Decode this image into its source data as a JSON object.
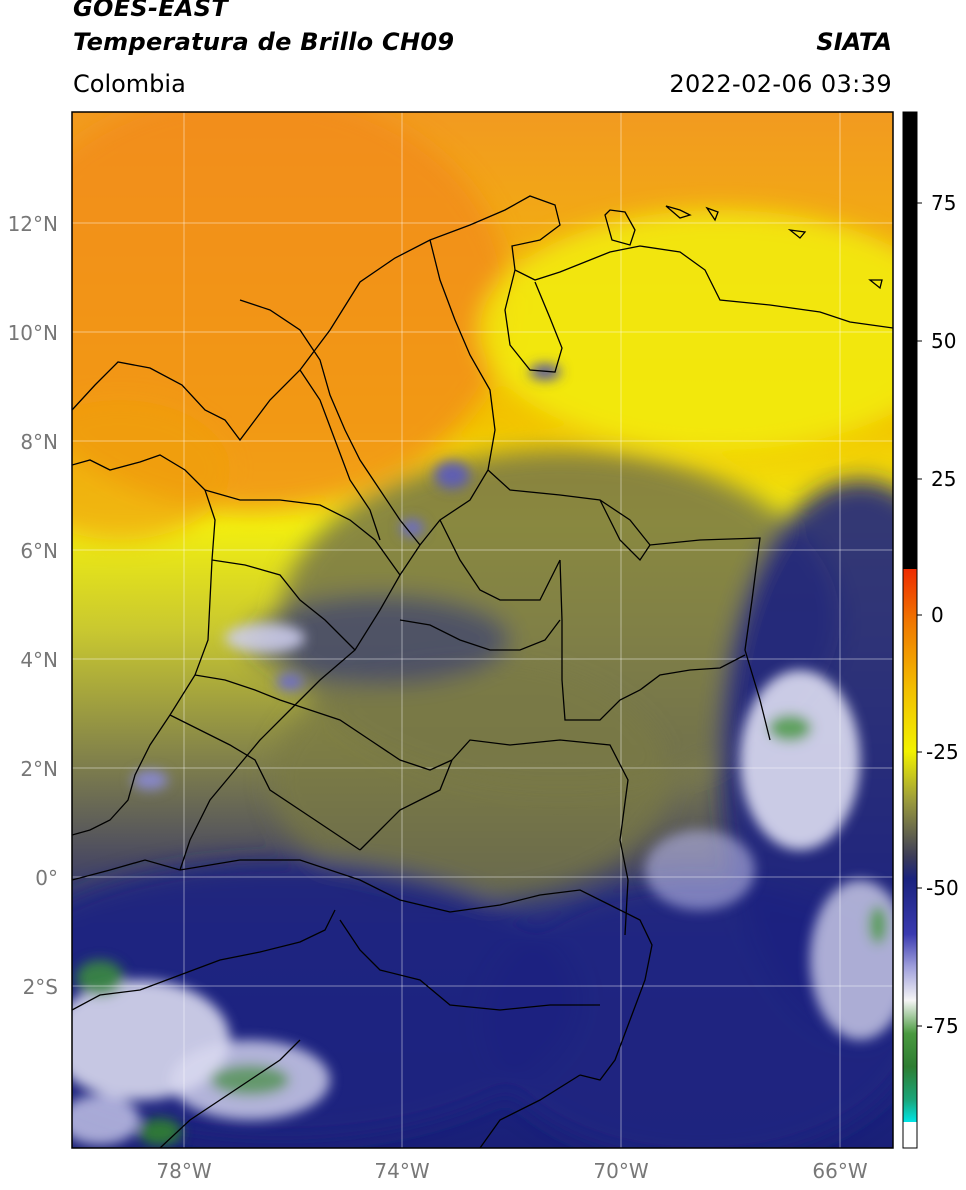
{
  "header": {
    "satellite": "GOES-EAST",
    "product": "Temperatura de Brillo CH09",
    "brand": "SIATA",
    "region": "Colombia",
    "datetime": "2022-02-06 03:39"
  },
  "map": {
    "lat_ticks": [
      "12°N",
      "10°N",
      "8°N",
      "6°N",
      "4°N",
      "2°N",
      "0°",
      "2°S"
    ],
    "lon_ticks": [
      "78°W",
      "74°W",
      "70°W",
      "66°W"
    ],
    "gridlines": true
  },
  "colorbar": {
    "ticks": [
      "75",
      "50",
      "25",
      "0",
      "-25",
      "-50",
      "-75"
    ],
    "colors": {
      "hot": "#000000",
      "red": "#ee2b00",
      "orange": "#f0a000",
      "yellow": "#f2f200",
      "olive": "#8a8a40",
      "dark_olive": "#4a4a50",
      "navy": "#1a237e",
      "blue": "#3a3ab0",
      "white": "#f5f5f5",
      "green": "#2e7d32",
      "teal": "#1aa67a",
      "cyan": "#00e5e5"
    }
  }
}
